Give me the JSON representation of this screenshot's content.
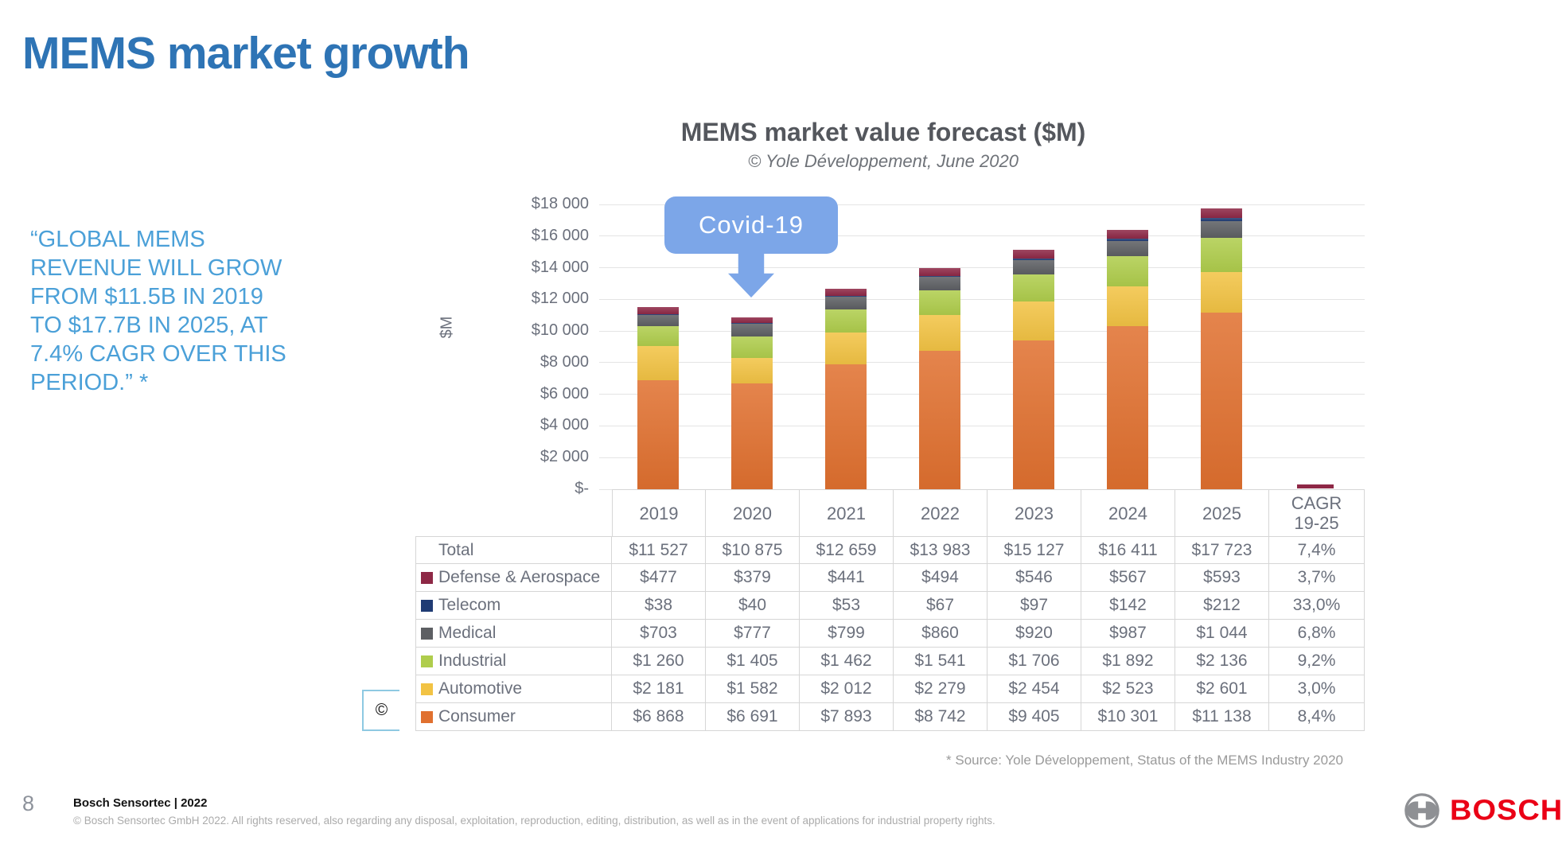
{
  "page": {
    "title": "MEMS market growth",
    "quote": "“GLOBAL MEMS\nREVENUE WILL GROW\nFROM $11.5B IN 2019\nTO $17.7B IN 2025, AT\n7.4% CAGR OVER THIS\nPERIOD.” *",
    "quote_color": "#4BA0D8",
    "title_color": "#2E74B5",
    "copyright_mark": "©"
  },
  "chart": {
    "title": "MEMS market value forecast ($M)",
    "subtitle": "© Yole Développement, June 2020",
    "y_axis_title": "$M",
    "callout_label": "Covid-19",
    "callout_color": "#7CA6E8",
    "cagr_marker_color": "#8E2846"
  },
  "chart_data": {
    "type": "bar",
    "stacked": true,
    "title": "MEMS market value forecast ($M)",
    "subtitle": "© Yole Développement, June 2020",
    "ylabel": "$M",
    "ylim": [
      0,
      18000
    ],
    "ytick_step": 2000,
    "ytick_labels": [
      "$-",
      "$2 000",
      "$4 000",
      "$6 000",
      "$8 000",
      "$10 000",
      "$12 000",
      "$14 000",
      "$16 000",
      "$18 000"
    ],
    "grid": true,
    "categories": [
      "2019",
      "2020",
      "2021",
      "2022",
      "2023",
      "2024",
      "2025"
    ],
    "series": [
      {
        "name": "Consumer",
        "color": "#E0702F",
        "values": [
          6868,
          6691,
          7893,
          8742,
          9405,
          10301,
          11138
        ]
      },
      {
        "name": "Automotive",
        "color": "#F2C344",
        "values": [
          2181,
          1582,
          2012,
          2279,
          2454,
          2523,
          2601
        ]
      },
      {
        "name": "Industrial",
        "color": "#AFCD4C",
        "values": [
          1260,
          1405,
          1462,
          1541,
          1706,
          1892,
          2136
        ]
      },
      {
        "name": "Medical",
        "color": "#5D5F63",
        "values": [
          703,
          777,
          799,
          860,
          920,
          987,
          1044
        ]
      },
      {
        "name": "Telecom",
        "color": "#203C74",
        "values": [
          38,
          40,
          53,
          67,
          97,
          142,
          212
        ]
      },
      {
        "name": "Defense & Aerospace",
        "color": "#8E2846",
        "values": [
          477,
          379,
          441,
          494,
          546,
          567,
          593
        ]
      }
    ],
    "annotations": [
      "Covid-19"
    ]
  },
  "table": {
    "col_headers": [
      "2019",
      "2020",
      "2021",
      "2022",
      "2023",
      "2024",
      "2025",
      "CAGR\n19-25"
    ],
    "rows": [
      {
        "label": "Total",
        "swatch": null,
        "values": [
          "$11 527",
          "$10 875",
          "$12 659",
          "$13 983",
          "$15 127",
          "$16 411",
          "$17 723",
          "7,4%"
        ]
      },
      {
        "label": "Defense & Aerospace",
        "swatch": "#8E2846",
        "values": [
          "$477",
          "$379",
          "$441",
          "$494",
          "$546",
          "$567",
          "$593",
          "3,7%"
        ]
      },
      {
        "label": "Telecom",
        "swatch": "#203C74",
        "values": [
          "$38",
          "$40",
          "$53",
          "$67",
          "$97",
          "$142",
          "$212",
          "33,0%"
        ]
      },
      {
        "label": "Medical",
        "swatch": "#5D5F63",
        "values": [
          "$703",
          "$777",
          "$799",
          "$860",
          "$920",
          "$987",
          "$1 044",
          "6,8%"
        ]
      },
      {
        "label": "Industrial",
        "swatch": "#AFCD4C",
        "values": [
          "$1 260",
          "$1 405",
          "$1 462",
          "$1 541",
          "$1 706",
          "$1 892",
          "$2 136",
          "9,2%"
        ]
      },
      {
        "label": "Automotive",
        "swatch": "#F2C344",
        "values": [
          "$2 181",
          "$1 582",
          "$2 012",
          "$2 279",
          "$2 454",
          "$2 523",
          "$2 601",
          "3,0%"
        ]
      },
      {
        "label": "Consumer",
        "swatch": "#E0702F",
        "values": [
          "$6 868",
          "$6 691",
          "$7 893",
          "$8 742",
          "$9 405",
          "$10 301",
          "$11 138",
          "8,4%"
        ]
      }
    ]
  },
  "source_note": "* Source: Yole Développement, Status of the MEMS Industry 2020",
  "footer": {
    "page_number": "8",
    "brand_line": "Bosch Sensortec | 2022",
    "copyright": "© Bosch Sensortec GmbH 2022. All rights reserved, also regarding any disposal, exploitation, reproduction, editing, distribution, as well as in the event of applications for industrial property rights.",
    "logo_text": "BOSCH",
    "logo_color": "#EA0016"
  }
}
